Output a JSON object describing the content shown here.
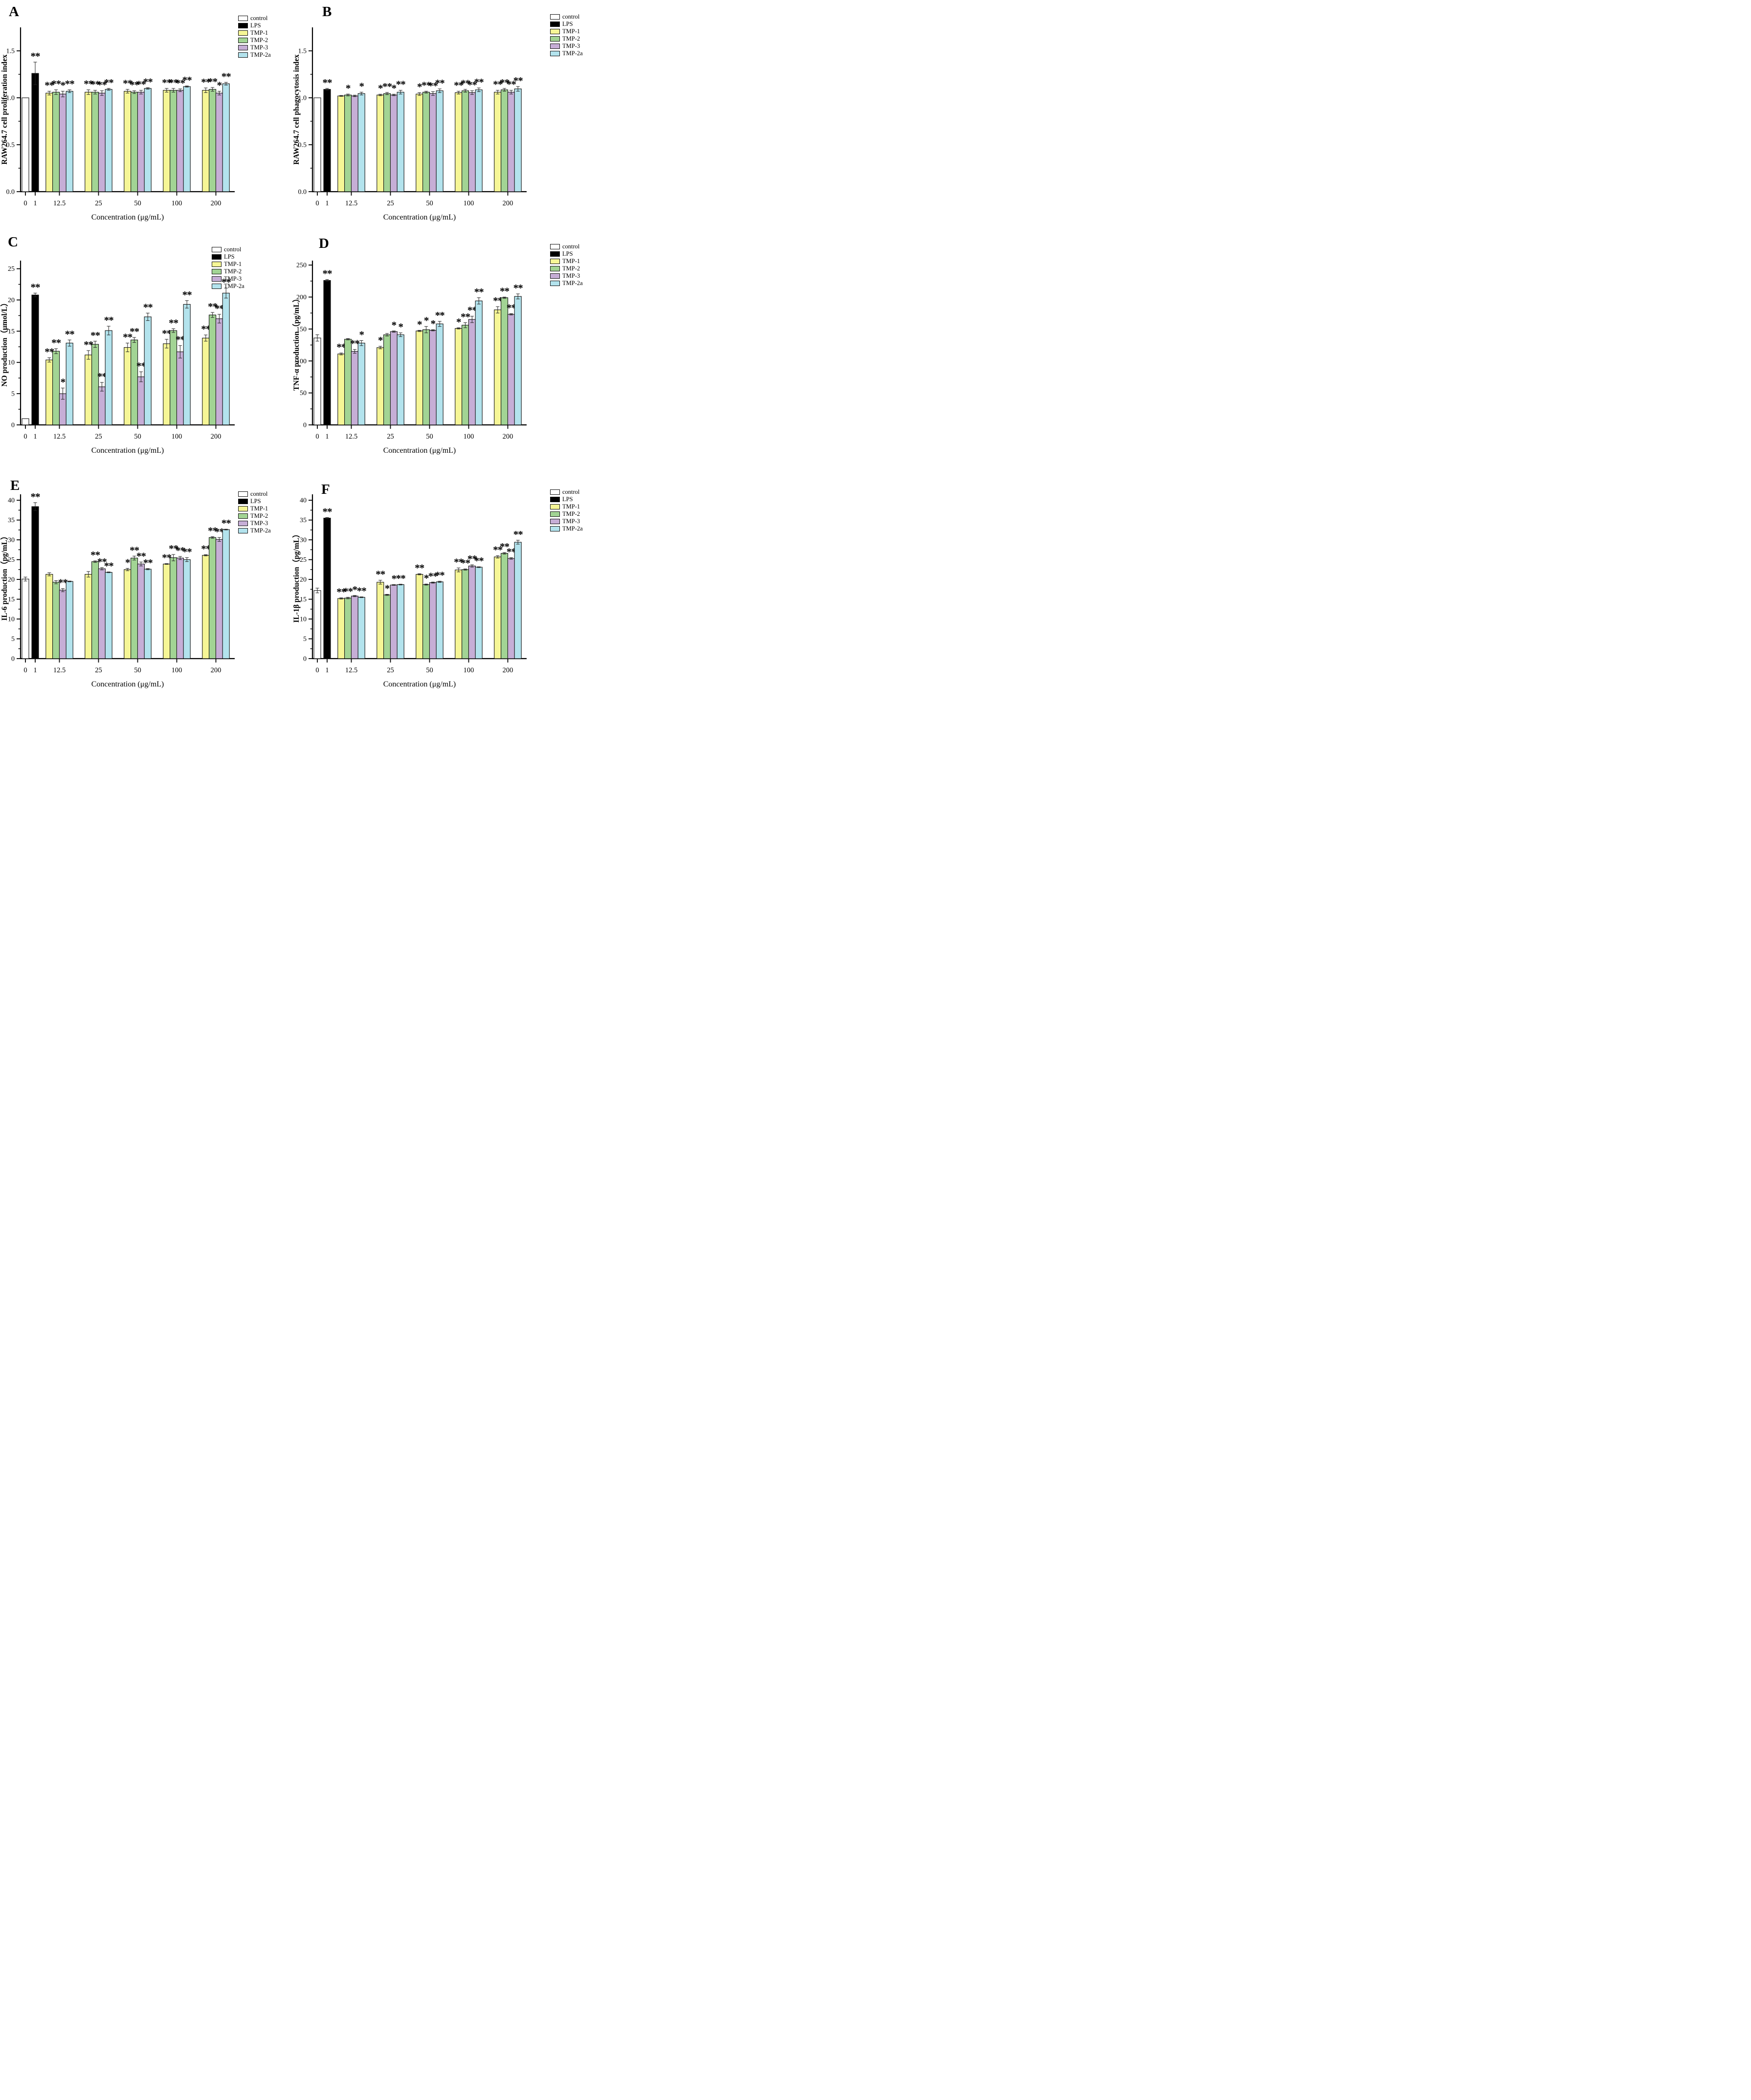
{
  "figure": {
    "x_axis_label": "Concentration (μg/mL)",
    "x_categories": [
      "0",
      "1",
      "12.5",
      "25",
      "50",
      "100",
      "200"
    ],
    "significance_symbols": {
      "p_less_0_05": "*",
      "p_less_0_01": "**"
    }
  },
  "legend": {
    "entries": [
      {
        "label": "control",
        "color": "#FFFFFF"
      },
      {
        "label": "LPS",
        "color": "#000000"
      },
      {
        "label": "TMP-1",
        "color": "#F6F696"
      },
      {
        "label": "TMP-2",
        "color": "#A2D494"
      },
      {
        "label": "TMP-3",
        "color": "#C6AED6"
      },
      {
        "label": "TMP-2a",
        "color": "#B3E3ED"
      }
    ]
  },
  "chart_data": [
    {
      "panel_label": "A",
      "type": "bar",
      "ylabel": "RAW264.7 cell proliferation index",
      "ylim": [
        0,
        1.75
      ],
      "ymax": 1.75,
      "minor_step": 0.25,
      "yticks": [
        0,
        0.5,
        1.0,
        1.5
      ],
      "ytick_labels": [
        "0.0",
        "0.5",
        "1.0",
        "1.5"
      ],
      "series_names": [
        "TMP-1",
        "TMP-2",
        "TMP-3",
        "TMP-2a"
      ],
      "control": {
        "value": 1.0,
        "err": 0,
        "sig": ""
      },
      "lps": {
        "value": 1.26,
        "err": 0.12,
        "sig": "**"
      },
      "groups": [
        {
          "concentration": "12.5",
          "values": [
            1.05,
            1.06,
            1.04,
            1.07
          ],
          "errors": [
            0.02,
            0.025,
            0.03,
            0.015
          ],
          "sig": [
            "**",
            "**",
            "*",
            "**"
          ]
        },
        {
          "concentration": "25",
          "values": [
            1.06,
            1.06,
            1.05,
            1.09
          ],
          "errors": [
            0.025,
            0.02,
            0.025,
            0.01
          ],
          "sig": [
            "**",
            "**",
            "**",
            "**"
          ]
        },
        {
          "concentration": "50",
          "values": [
            1.07,
            1.06,
            1.06,
            1.1
          ],
          "errors": [
            0.02,
            0.015,
            0.02,
            0.008
          ],
          "sig": [
            "**",
            "**",
            "**",
            "**"
          ]
        },
        {
          "concentration": "100",
          "values": [
            1.08,
            1.08,
            1.08,
            1.12
          ],
          "errors": [
            0.02,
            0.02,
            0.015,
            0.006
          ],
          "sig": [
            "**",
            "**",
            "**",
            "**"
          ]
        },
        {
          "concentration": "200",
          "values": [
            1.08,
            1.09,
            1.05,
            1.15
          ],
          "errors": [
            0.025,
            0.02,
            0.02,
            0.015
          ],
          "sig": [
            "**",
            "**",
            "*",
            "**"
          ]
        }
      ]
    },
    {
      "panel_label": "B",
      "type": "bar",
      "ylabel": "RAW264.7 cell phagocytosis index",
      "ylim": [
        0,
        1.75
      ],
      "ymax": 1.75,
      "minor_step": 0.25,
      "yticks": [
        0,
        0.5,
        1.0,
        1.5
      ],
      "ytick_labels": [
        "0.0",
        "0.5",
        "1.0",
        "1.5"
      ],
      "series_names": [
        "TMP-1",
        "TMP-2",
        "TMP-3",
        "TMP-2a"
      ],
      "control": {
        "value": 1.0,
        "err": 0,
        "sig": ""
      },
      "lps": {
        "value": 1.09,
        "err": 0.01,
        "sig": "**"
      },
      "groups": [
        {
          "concentration": "12.5",
          "values": [
            1.02,
            1.03,
            1.02,
            1.045
          ],
          "errors": [
            0.005,
            0.01,
            0.008,
            0.015
          ],
          "sig": [
            "",
            "*",
            "",
            "*"
          ]
        },
        {
          "concentration": "25",
          "values": [
            1.03,
            1.045,
            1.03,
            1.06
          ],
          "errors": [
            0.008,
            0.012,
            0.008,
            0.02
          ],
          "sig": [
            "*",
            "**",
            "*",
            "**"
          ]
        },
        {
          "concentration": "50",
          "values": [
            1.04,
            1.06,
            1.045,
            1.075
          ],
          "errors": [
            0.015,
            0.01,
            0.02,
            0.02
          ],
          "sig": [
            "*",
            "**",
            "**",
            "**"
          ]
        },
        {
          "concentration": "100",
          "values": [
            1.055,
            1.075,
            1.055,
            1.085
          ],
          "errors": [
            0.015,
            0.015,
            0.02,
            0.02
          ],
          "sig": [
            "**",
            "**",
            "**",
            "**"
          ]
        },
        {
          "concentration": "200",
          "values": [
            1.06,
            1.085,
            1.06,
            1.095
          ],
          "errors": [
            0.02,
            0.015,
            0.02,
            0.025
          ],
          "sig": [
            "**",
            "**",
            "**",
            "**"
          ]
        }
      ]
    },
    {
      "panel_label": "C",
      "type": "bar",
      "ylabel": "NO production（μmol/L）",
      "ylim": [
        0,
        26.3
      ],
      "ymax": 26.3,
      "minor_step": 2.5,
      "yticks": [
        0,
        5,
        10,
        15,
        20,
        25
      ],
      "ytick_labels": [
        "0",
        "5",
        "10",
        "15",
        "20",
        "25"
      ],
      "series_names": [
        "TMP-1",
        "TMP-2",
        "TMP-3",
        "TMP-2a"
      ],
      "control": {
        "value": 1.0,
        "err": 0,
        "sig": ""
      },
      "lps": {
        "value": 20.8,
        "err": 0.3,
        "sig": "**"
      },
      "groups": [
        {
          "concentration": "12.5",
          "values": [
            10.4,
            11.8,
            5.0,
            13.1
          ],
          "errors": [
            0.35,
            0.4,
            0.9,
            0.5
          ],
          "sig": [
            "**",
            "**",
            "*",
            "**"
          ]
        },
        {
          "concentration": "25",
          "values": [
            11.2,
            12.9,
            6.1,
            15.1
          ],
          "errors": [
            0.7,
            0.5,
            0.7,
            0.7
          ],
          "sig": [
            "**",
            "**",
            "**",
            "**"
          ]
        },
        {
          "concentration": "50",
          "values": [
            12.4,
            13.6,
            7.7,
            17.3
          ],
          "errors": [
            0.7,
            0.4,
            0.8,
            0.6
          ],
          "sig": [
            "**",
            "**",
            "**",
            "**"
          ]
        },
        {
          "concentration": "100",
          "values": [
            13.0,
            15.1,
            11.7,
            19.3
          ],
          "errors": [
            0.7,
            0.3,
            1.0,
            0.6
          ],
          "sig": [
            "**",
            "**",
            "**",
            "**"
          ]
        },
        {
          "concentration": "200",
          "values": [
            13.9,
            17.6,
            17.0,
            21.1
          ],
          "errors": [
            0.5,
            0.4,
            0.7,
            0.8
          ],
          "sig": [
            "**",
            "**",
            "**",
            "**"
          ]
        }
      ]
    },
    {
      "panel_label": "D",
      "type": "bar",
      "ylabel": "TNF-α production（pg/mL）",
      "ylim": [
        0,
        257
      ],
      "ymax": 257,
      "minor_step": 25,
      "yticks": [
        0,
        50,
        100,
        150,
        200,
        250
      ],
      "ytick_labels": [
        "0",
        "50",
        "100",
        "150",
        "200",
        "250"
      ],
      "series_names": [
        "TMP-1",
        "TMP-2",
        "TMP-3",
        "TMP-2a"
      ],
      "control": {
        "value": 136,
        "err": 5,
        "sig": ""
      },
      "lps": {
        "value": 226,
        "err": 1.5,
        "sig": "**"
      },
      "groups": [
        {
          "concentration": "12.5",
          "values": [
            111,
            134,
            115,
            128
          ],
          "errors": [
            1.5,
            1,
            3,
            4
          ],
          "sig": [
            "**",
            "",
            "**",
            "*"
          ]
        },
        {
          "concentration": "25",
          "values": [
            121,
            141,
            146,
            141
          ],
          "errors": [
            2,
            2,
            1,
            3
          ],
          "sig": [
            "*",
            "",
            "*",
            "*"
          ]
        },
        {
          "concentration": "50",
          "values": [
            147,
            149,
            148,
            158
          ],
          "errors": [
            1,
            5,
            1,
            4
          ],
          "sig": [
            "*",
            "*",
            "*",
            "**"
          ]
        },
        {
          "concentration": "100",
          "values": [
            151,
            156,
            165,
            194
          ],
          "errors": [
            1,
            4,
            5,
            5
          ],
          "sig": [
            "*",
            "**",
            "**",
            "**"
          ]
        },
        {
          "concentration": "200",
          "values": [
            180,
            199,
            173,
            201
          ],
          "errors": [
            5,
            1,
            1,
            4
          ],
          "sig": [
            "**",
            "**",
            "**",
            "**"
          ]
        }
      ]
    },
    {
      "panel_label": "E",
      "type": "bar",
      "ylabel": "IL-6 production（pg/mL）",
      "ylim": [
        0,
        41.5
      ],
      "ymax": 41.5,
      "minor_step": 2.5,
      "yticks": [
        0,
        5,
        10,
        15,
        20,
        25,
        30,
        35,
        40
      ],
      "ytick_labels": [
        "0",
        "5",
        "10",
        "15",
        "20",
        "25",
        "30",
        "35",
        "40"
      ],
      "series_names": [
        "TMP-1",
        "TMP-2",
        "TMP-3",
        "TMP-2a"
      ],
      "control": {
        "value": 20.1,
        "err": 0.5,
        "sig": ""
      },
      "lps": {
        "value": 38.4,
        "err": 1.0,
        "sig": "**"
      },
      "groups": [
        {
          "concentration": "12.5",
          "values": [
            21.3,
            19.3,
            17.3,
            19.5
          ],
          "errors": [
            0.4,
            0.4,
            0.4,
            0.1
          ],
          "sig": [
            "",
            "",
            "**",
            ""
          ]
        },
        {
          "concentration": "25",
          "values": [
            21.3,
            24.5,
            22.7,
            21.8
          ],
          "errors": [
            0.7,
            0.2,
            0.3,
            0.1
          ],
          "sig": [
            "",
            "**",
            "**",
            "**"
          ]
        },
        {
          "concentration": "50",
          "values": [
            22.5,
            25.4,
            23.9,
            22.6
          ],
          "errors": [
            0.3,
            0.5,
            0.5,
            0.15
          ],
          "sig": [
            "*",
            "**",
            "**",
            "**"
          ]
        },
        {
          "concentration": "100",
          "values": [
            23.9,
            25.5,
            25.4,
            25.0
          ],
          "errors": [
            0.1,
            0.8,
            0.4,
            0.5
          ],
          "sig": [
            "**",
            "**",
            "**",
            "**"
          ]
        },
        {
          "concentration": "200",
          "values": [
            26.1,
            30.6,
            30.1,
            32.6
          ],
          "errors": [
            0.15,
            0.2,
            0.5,
            0.1
          ],
          "sig": [
            "**",
            "**",
            "**",
            "**"
          ]
        }
      ]
    },
    {
      "panel_label": "F",
      "type": "bar",
      "ylabel": "IL-1β production（pg/mL）",
      "ylim": [
        0,
        41.5
      ],
      "ymax": 41.5,
      "minor_step": 2.5,
      "yticks": [
        0,
        5,
        10,
        15,
        20,
        25,
        30,
        35,
        40
      ],
      "ytick_labels": [
        "0",
        "5",
        "10",
        "15",
        "20",
        "25",
        "30",
        "35",
        "40"
      ],
      "series_names": [
        "TMP-1",
        "TMP-2",
        "TMP-3",
        "TMP-2a"
      ],
      "control": {
        "value": 17.2,
        "err": 0.6,
        "sig": ""
      },
      "lps": {
        "value": 35.5,
        "err": 0.15,
        "sig": "**"
      },
      "groups": [
        {
          "concentration": "12.5",
          "values": [
            15.2,
            15.3,
            15.8,
            15.5
          ],
          "errors": [
            0.15,
            0.2,
            0.15,
            0.1
          ],
          "sig": [
            "**",
            "**",
            "*",
            "**"
          ]
        },
        {
          "concentration": "25",
          "values": [
            19.3,
            16.1,
            18.6,
            18.7
          ],
          "errors": [
            0.5,
            0.15,
            0.1,
            0.1
          ],
          "sig": [
            "**",
            "*",
            "*",
            "**"
          ]
        },
        {
          "concentration": "50",
          "values": [
            21.3,
            18.7,
            19.2,
            19.4
          ],
          "errors": [
            0.15,
            0.15,
            0.15,
            0.15
          ],
          "sig": [
            "**",
            "*",
            "**",
            "**"
          ]
        },
        {
          "concentration": "100",
          "values": [
            22.4,
            22.5,
            23.4,
            23.1
          ],
          "errors": [
            0.5,
            0.15,
            0.3,
            0.1
          ],
          "sig": [
            "**",
            "**",
            "**",
            "**"
          ]
        },
        {
          "concentration": "200",
          "values": [
            25.7,
            26.6,
            25.3,
            29.4
          ],
          "errors": [
            0.3,
            0.2,
            0.2,
            0.5
          ],
          "sig": [
            "**",
            "**",
            "**",
            "**"
          ]
        }
      ]
    }
  ]
}
